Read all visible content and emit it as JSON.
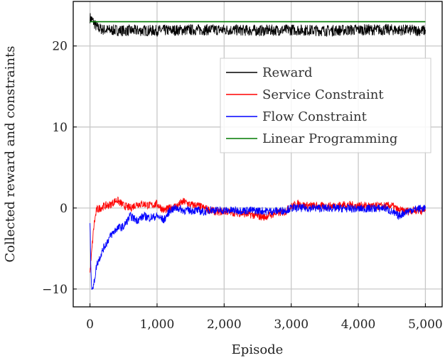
{
  "chart_data": {
    "type": "line",
    "title": "",
    "xlabel": "Episode",
    "ylabel": "Collected reward and constraints",
    "xlim": [
      -250,
      5250
    ],
    "ylim": [
      -12.2,
      25.5
    ],
    "xticks": [
      0,
      1000,
      2000,
      3000,
      4000,
      5000
    ],
    "xtick_labels": [
      "0",
      "1,000",
      "2,000",
      "3,000",
      "4,000",
      "5,000"
    ],
    "yticks": [
      -10,
      0,
      10,
      20
    ],
    "ytick_labels": [
      "−10",
      "0",
      "10",
      "20"
    ],
    "grid": true,
    "legend_position": "center-right",
    "series": [
      {
        "name": "Reward",
        "color": "#000000",
        "x": [
          0,
          50,
          100,
          200,
          500,
          1000,
          1500,
          2000,
          2500,
          3000,
          3500,
          4000,
          4500,
          5000
        ],
        "y": [
          23.5,
          23,
          22.3,
          22,
          21.9,
          21.9,
          22,
          22,
          21.9,
          22,
          21.9,
          22,
          22,
          21.9
        ]
      },
      {
        "name": "Service Constraint",
        "color": "#ff0000",
        "x": [
          0,
          30,
          60,
          100,
          200,
          300,
          400,
          500,
          600,
          700,
          800,
          900,
          1000,
          1100,
          1200,
          1300,
          1400,
          1500,
          1600,
          1700,
          1800,
          1900,
          2000,
          2200,
          2400,
          2500,
          2600,
          2700,
          2800,
          2900,
          3000,
          3100,
          3200,
          3500,
          3800,
          4000,
          4300,
          4500,
          4600,
          4700,
          4800,
          5000
        ],
        "y": [
          -8,
          -5,
          -2,
          -0.2,
          0.2,
          0.4,
          1,
          0.3,
          0,
          0.5,
          0.5,
          0.3,
          0.5,
          -0.3,
          0,
          0.3,
          0.8,
          0.4,
          0.3,
          0,
          -0.3,
          -0.5,
          -0.4,
          -0.6,
          -0.8,
          -1,
          -1.1,
          -0.8,
          -0.6,
          -0.5,
          0.2,
          0.5,
          0.3,
          0.2,
          0.4,
          0.3,
          0.2,
          0.3,
          -0.3,
          -0.4,
          -0.3,
          -0.3
        ]
      },
      {
        "name": "Flow Constraint",
        "color": "#0000ff",
        "x": [
          0,
          20,
          50,
          100,
          200,
          300,
          400,
          500,
          600,
          700,
          800,
          900,
          1000,
          1100,
          1200,
          1300,
          1400,
          1500,
          1600,
          1700,
          1800,
          1900,
          2100,
          2400,
          2700,
          2900,
          3000,
          3100,
          3500,
          4000,
          4400,
          4600,
          4700,
          4800,
          5000
        ],
        "y": [
          -2,
          -9.5,
          -9.8,
          -7,
          -5,
          -3.5,
          -2.5,
          -2.3,
          -1,
          -1.5,
          -1,
          -1.2,
          -1,
          -1.5,
          -0.2,
          0,
          -0.3,
          -0.3,
          -0.3,
          -0.5,
          -0.2,
          -0.3,
          -0.3,
          -0.3,
          -0.4,
          -0.3,
          0,
          0,
          0,
          -0.1,
          0,
          -1,
          -0.5,
          -0.2,
          0
        ]
      },
      {
        "name": "Linear Programming",
        "color": "#007a00",
        "x": [
          0,
          5000
        ],
        "y": [
          23,
          23
        ]
      }
    ]
  }
}
